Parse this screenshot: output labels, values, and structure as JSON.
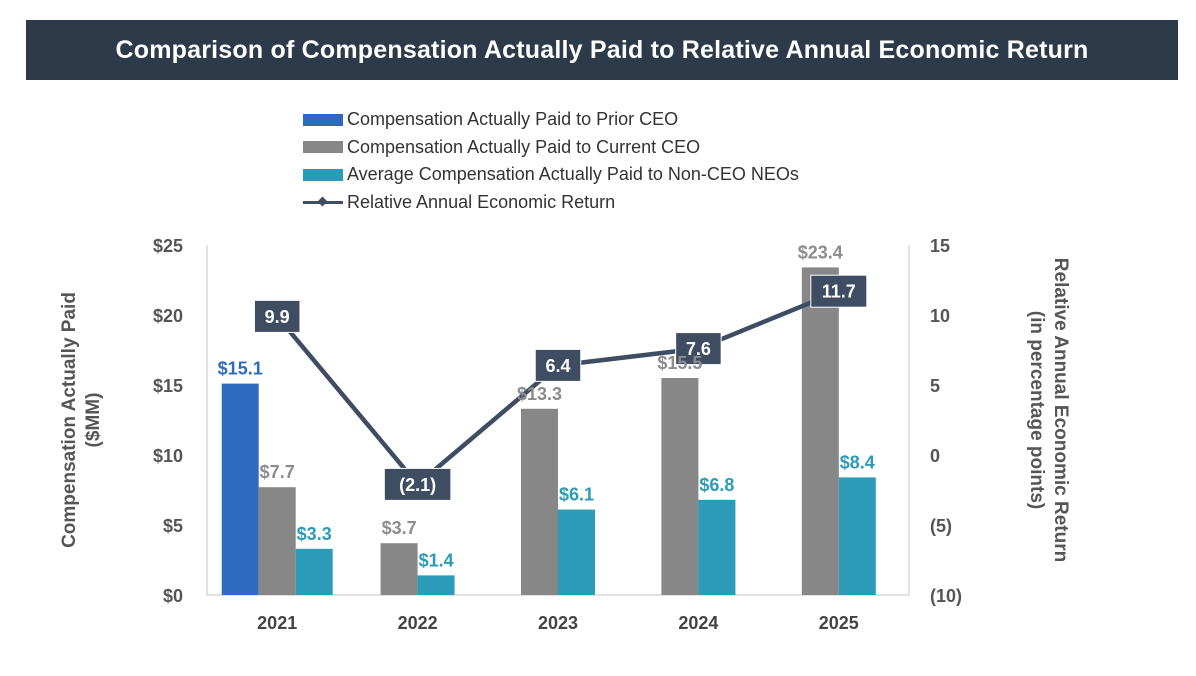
{
  "chart_data": {
    "type": "bar",
    "title": "Comparison of Compensation Actually Paid to Relative Annual Economic Return",
    "categories": [
      "2021",
      "2022",
      "2023",
      "2024",
      "2025"
    ],
    "series": [
      {
        "name": "Compensation Actually Paid to Prior CEO",
        "type": "bar",
        "axis": "left",
        "color": "#2e6bbf",
        "label_color": "#2e6bbf",
        "values": [
          15.1,
          null,
          null,
          null,
          null
        ],
        "labels": [
          "$15.1",
          "",
          "",
          "",
          ""
        ]
      },
      {
        "name": "Compensation Actually Paid to Current CEO",
        "type": "bar",
        "axis": "left",
        "color": "#878787",
        "label_color": "#8c8c8c",
        "values": [
          7.7,
          3.7,
          13.3,
          15.5,
          23.4
        ],
        "labels": [
          "$7.7",
          "$3.7",
          "$13.3",
          "$15.5",
          "$23.4"
        ]
      },
      {
        "name": "Average Compensation Actually Paid to Non-CEO NEOs",
        "type": "bar",
        "axis": "left",
        "color": "#2b9bb8",
        "label_color": "#2b9bb8",
        "values": [
          3.3,
          1.4,
          6.1,
          6.8,
          8.4
        ],
        "labels": [
          "$3.3",
          "$1.4",
          "$6.1",
          "$6.8",
          "$8.4"
        ]
      },
      {
        "name": "Relative Annual Economic Return",
        "type": "line",
        "axis": "right",
        "color": "#3f4d63",
        "values": [
          9.9,
          -2.1,
          6.4,
          7.6,
          11.7
        ],
        "labels": [
          "9.9",
          "(2.1)",
          "6.4",
          "7.6",
          "11.7"
        ]
      }
    ],
    "y_left": {
      "label_line1": "Compensation Actually Paid",
      "label_line2": "($MM)",
      "range": [
        0,
        25
      ],
      "ticks": [
        "$0",
        "$5",
        "$10",
        "$15",
        "$20",
        "$25"
      ],
      "tick_values": [
        0,
        5,
        10,
        15,
        20,
        25
      ]
    },
    "y_right": {
      "label_line1": "Relative Annual Economic Return",
      "label_line2": "(in percentage points)",
      "range": [
        -10,
        15
      ],
      "ticks": [
        "(10)",
        "(5)",
        "0",
        "5",
        "10",
        "15"
      ],
      "tick_values": [
        -10,
        -5,
        0,
        5,
        10,
        15
      ]
    },
    "legend_position": "top-center",
    "grid": false
  }
}
